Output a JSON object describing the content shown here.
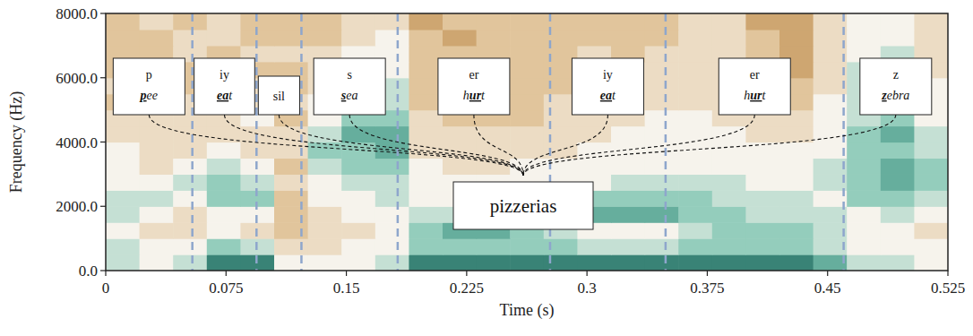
{
  "chart_data": {
    "type": "heatmap",
    "xlabel": "Time (s)",
    "ylabel": "Frequency (Hz)",
    "xlim": [
      0,
      0.525
    ],
    "xticks": [
      0,
      0.075,
      0.15,
      0.225,
      0.3,
      0.375,
      0.45,
      0.525
    ],
    "ylim": [
      0,
      8000
    ],
    "yticks": [
      {
        "value": 0,
        "label": "0.0"
      },
      {
        "value": 2000,
        "label": "2000.0"
      },
      {
        "value": 4000,
        "label": "4000.0"
      },
      {
        "value": 6000,
        "label": "6000.0"
      },
      {
        "value": 8000,
        "label": "8000.0"
      }
    ],
    "zlim": [
      0,
      10
    ],
    "cells": [
      [
        6,
        5,
        6,
        9,
        9,
        5,
        5,
        5,
        6,
        9,
        9,
        9,
        9,
        9,
        9,
        9,
        9,
        9,
        9,
        9,
        9,
        8,
        6,
        6,
        5
      ],
      [
        6,
        5,
        5,
        7,
        6,
        4,
        4,
        5,
        5,
        7,
        7,
        7,
        7,
        7,
        6,
        6,
        6,
        7,
        7,
        7,
        7,
        6,
        5,
        5,
        5
      ],
      [
        5,
        4,
        4,
        5,
        4,
        3,
        4,
        4,
        5,
        7,
        8,
        8,
        7,
        6,
        5,
        5,
        5,
        6,
        7,
        7,
        7,
        6,
        5,
        5,
        4
      ],
      [
        6,
        5,
        4,
        5,
        5,
        3,
        4,
        5,
        5,
        6,
        6,
        6,
        7,
        7,
        8,
        8,
        8,
        7,
        7,
        6,
        6,
        6,
        5,
        6,
        5
      ],
      [
        6,
        6,
        5,
        7,
        7,
        3,
        5,
        5,
        6,
        5,
        5,
        6,
        6,
        6,
        7,
        7,
        7,
        7,
        6,
        6,
        6,
        5,
        7,
        7,
        6
      ],
      [
        5,
        5,
        6,
        7,
        6,
        4,
        5,
        6,
        6,
        5,
        5,
        5,
        5,
        5,
        5,
        6,
        6,
        6,
        6,
        5,
        5,
        6,
        7,
        8,
        7
      ],
      [
        5,
        4,
        5,
        6,
        5,
        3,
        6,
        7,
        7,
        5,
        4,
        4,
        5,
        5,
        5,
        5,
        5,
        5,
        5,
        5,
        5,
        6,
        7,
        8,
        7
      ],
      [
        5,
        4,
        4,
        5,
        4,
        4,
        7,
        7,
        8,
        4,
        4,
        4,
        4,
        4,
        5,
        5,
        5,
        5,
        5,
        5,
        5,
        5,
        7,
        7,
        6
      ],
      [
        4,
        4,
        4,
        4,
        4,
        4,
        6,
        8,
        8,
        4,
        4,
        4,
        4,
        4,
        4,
        5,
        5,
        5,
        5,
        4,
        4,
        5,
        7,
        8,
        6
      ],
      [
        4,
        4,
        4,
        4,
        5,
        3,
        5,
        7,
        7,
        4,
        3,
        3,
        3,
        4,
        4,
        4,
        5,
        5,
        4,
        4,
        4,
        5,
        6,
        7,
        5
      ],
      [
        3,
        4,
        4,
        4,
        4,
        4,
        5,
        6,
        6,
        3,
        3,
        3,
        3,
        4,
        4,
        4,
        4,
        4,
        4,
        3,
        3,
        5,
        6,
        6,
        5
      ],
      [
        4,
        3,
        3,
        4,
        4,
        3,
        4,
        6,
        6,
        3,
        3,
        3,
        3,
        3,
        4,
        4,
        4,
        4,
        4,
        3,
        3,
        4,
        6,
        6,
        5
      ],
      [
        3,
        4,
        3,
        4,
        3,
        3,
        4,
        5,
        5,
        3,
        3,
        3,
        3,
        3,
        3,
        4,
        4,
        4,
        4,
        3,
        2,
        4,
        6,
        6,
        4
      ],
      [
        3,
        3,
        4,
        3,
        4,
        4,
        4,
        5,
        5,
        3,
        3,
        3,
        3,
        3,
        4,
        3,
        4,
        4,
        4,
        3,
        2,
        4,
        5,
        6,
        4
      ],
      [
        3,
        3,
        4,
        4,
        3,
        3,
        3,
        4,
        5,
        3,
        2,
        3,
        3,
        3,
        3,
        3,
        3,
        4,
        4,
        3,
        2,
        4,
        5,
        5,
        4
      ],
      [
        3,
        4,
        3,
        4,
        3,
        3,
        3,
        4,
        4,
        2,
        3,
        3,
        3,
        3,
        3,
        3,
        3,
        4,
        4,
        2,
        2,
        4,
        5,
        5,
        4
      ]
    ],
    "word": "pizzerias",
    "segments": [
      {
        "phone": "p",
        "word": [
          {
            "text": "p",
            "underline": true
          },
          {
            "text": "ee",
            "underline": false
          }
        ],
        "start": 0,
        "end": 0.054
      },
      {
        "phone": "iy",
        "word": [
          {
            "text": "ea",
            "underline": true
          },
          {
            "text": "t",
            "underline": false
          }
        ],
        "start": 0.054,
        "end": 0.094
      },
      {
        "phone": "sil",
        "start": 0.094,
        "end": 0.122
      },
      {
        "phone": "s",
        "word": [
          {
            "text": "s",
            "underline": true
          },
          {
            "text": "ea",
            "underline": false
          }
        ],
        "start": 0.122,
        "end": 0.182
      },
      {
        "phone": "er",
        "word": [
          {
            "text": "h",
            "underline": false
          },
          {
            "text": "ur",
            "underline": true
          },
          {
            "text": "t",
            "underline": false
          }
        ],
        "start": 0.182,
        "end": 0.277
      },
      {
        "phone": "iy",
        "word": [
          {
            "text": "ea",
            "underline": true
          },
          {
            "text": "t",
            "underline": false
          }
        ],
        "start": 0.277,
        "end": 0.349
      },
      {
        "phone": "er",
        "word": [
          {
            "text": "h",
            "underline": false
          },
          {
            "text": "ur",
            "underline": true
          },
          {
            "text": "t",
            "underline": false
          }
        ],
        "start": 0.349,
        "end": 0.46
      },
      {
        "phone": "z",
        "word": [
          {
            "text": "z",
            "underline": true
          },
          {
            "text": "ebra",
            "underline": false
          }
        ],
        "start": 0.46,
        "end": 0.525
      }
    ]
  }
}
